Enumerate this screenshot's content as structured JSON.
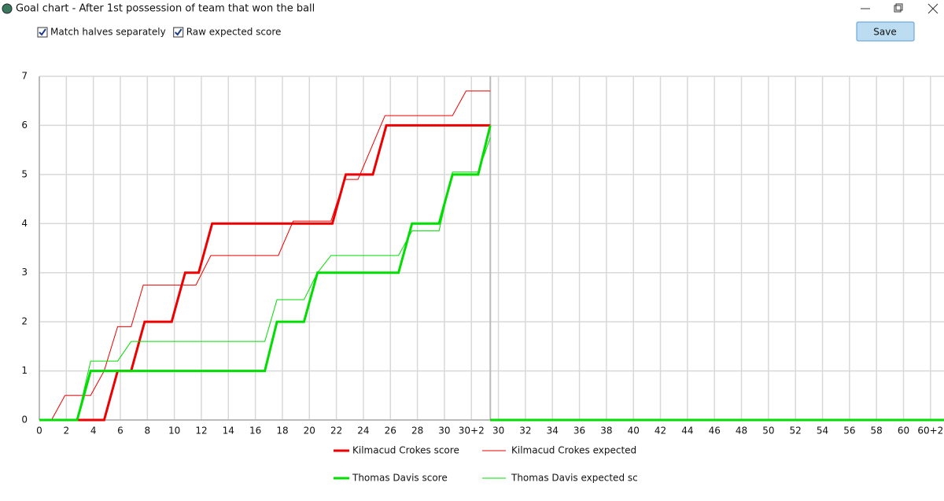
{
  "window": {
    "title": "Goal chart - After 1st possession of team that won the ball",
    "options": [
      {
        "label": "Match halves separately",
        "checked": true
      },
      {
        "label": "Raw expected score",
        "checked": true
      }
    ],
    "save_button": "Save"
  },
  "chart_data": {
    "type": "line",
    "xlim": [
      0,
      67
    ],
    "ylim": [
      0,
      7
    ],
    "grid": true,
    "half_divider": 33.4,
    "yticks": [
      0,
      1,
      2,
      3,
      4,
      5,
      6,
      7
    ],
    "xticks": [
      0,
      2,
      4,
      6,
      8,
      10,
      12,
      14,
      16,
      18,
      20,
      22,
      24,
      26,
      28,
      30,
      {
        "value": 32,
        "label": "30+2"
      },
      {
        "value": 34,
        "label": "30"
      },
      {
        "value": 36,
        "label": "32"
      },
      {
        "value": 38,
        "label": "34"
      },
      {
        "value": 40,
        "label": "36"
      },
      {
        "value": 42,
        "label": "38"
      },
      {
        "value": 44,
        "label": "40"
      },
      {
        "value": 46,
        "label": "42"
      },
      {
        "value": 48,
        "label": "44"
      },
      {
        "value": 50,
        "label": "46"
      },
      {
        "value": 52,
        "label": "48"
      },
      {
        "value": 54,
        "label": "50"
      },
      {
        "value": 56,
        "label": "52"
      },
      {
        "value": 58,
        "label": "54"
      },
      {
        "value": 60,
        "label": "56"
      },
      {
        "value": 62,
        "label": "58"
      },
      {
        "value": 64,
        "label": "60"
      },
      {
        "value": 66,
        "label": "60+2"
      }
    ],
    "series": [
      {
        "name": "Kilmacud Crokes score",
        "color": "#ee0000",
        "line_width": 3,
        "x": [
          0,
          4.8,
          5.8,
          6.8,
          7.8,
          9.8,
          10.8,
          11.8,
          12.8,
          21.7,
          22.7,
          24.7,
          25.7,
          33.4,
          33.4,
          33.4,
          67
        ],
        "values": [
          0,
          0,
          1,
          1,
          2,
          2,
          3,
          3,
          4,
          4,
          5,
          5,
          6,
          6,
          null,
          0,
          0
        ]
      },
      {
        "name": "Kilmacud Crokes expected",
        "color": "#ee0000",
        "line_width": 1,
        "x": [
          0,
          0.9,
          1.9,
          3.8,
          4.8,
          5.8,
          6.8,
          7.7,
          11.6,
          12.7,
          17.7,
          18.8,
          21.6,
          22.6,
          23.6,
          25.6,
          30.6,
          31.6,
          33.4
        ],
        "values": [
          0,
          0,
          0.5,
          0.5,
          1,
          1.9,
          1.9,
          2.75,
          2.75,
          3.35,
          3.35,
          4.05,
          4.05,
          4.9,
          4.9,
          6.2,
          6.2,
          6.7,
          6.7
        ]
      },
      {
        "name": "Thomas Davis score",
        "color": "#00dd00",
        "line_width": 3,
        "x": [
          0,
          2.8,
          3.8,
          16.7,
          17.6,
          19.6,
          20.6,
          26.6,
          27.6,
          29.6,
          30.6,
          32.5,
          33.4,
          33.4,
          33.4,
          67
        ],
        "values": [
          0,
          0,
          1,
          1,
          2,
          2,
          3,
          3,
          4,
          4,
          5,
          5,
          6,
          null,
          0,
          0
        ]
      },
      {
        "name": "Thomas Davis expected sc",
        "color": "#00dd00",
        "line_width": 1,
        "x": [
          0,
          2.8,
          3.8,
          5.8,
          6.8,
          16.7,
          17.6,
          19.6,
          20.6,
          21.6,
          26.6,
          27.6,
          29.6,
          30.6,
          32.5,
          33.4
        ],
        "values": [
          0,
          0,
          1.2,
          1.2,
          1.6,
          1.6,
          2.45,
          2.45,
          3,
          3.35,
          3.35,
          3.85,
          3.85,
          5.05,
          5.05,
          5.75
        ]
      }
    ]
  }
}
